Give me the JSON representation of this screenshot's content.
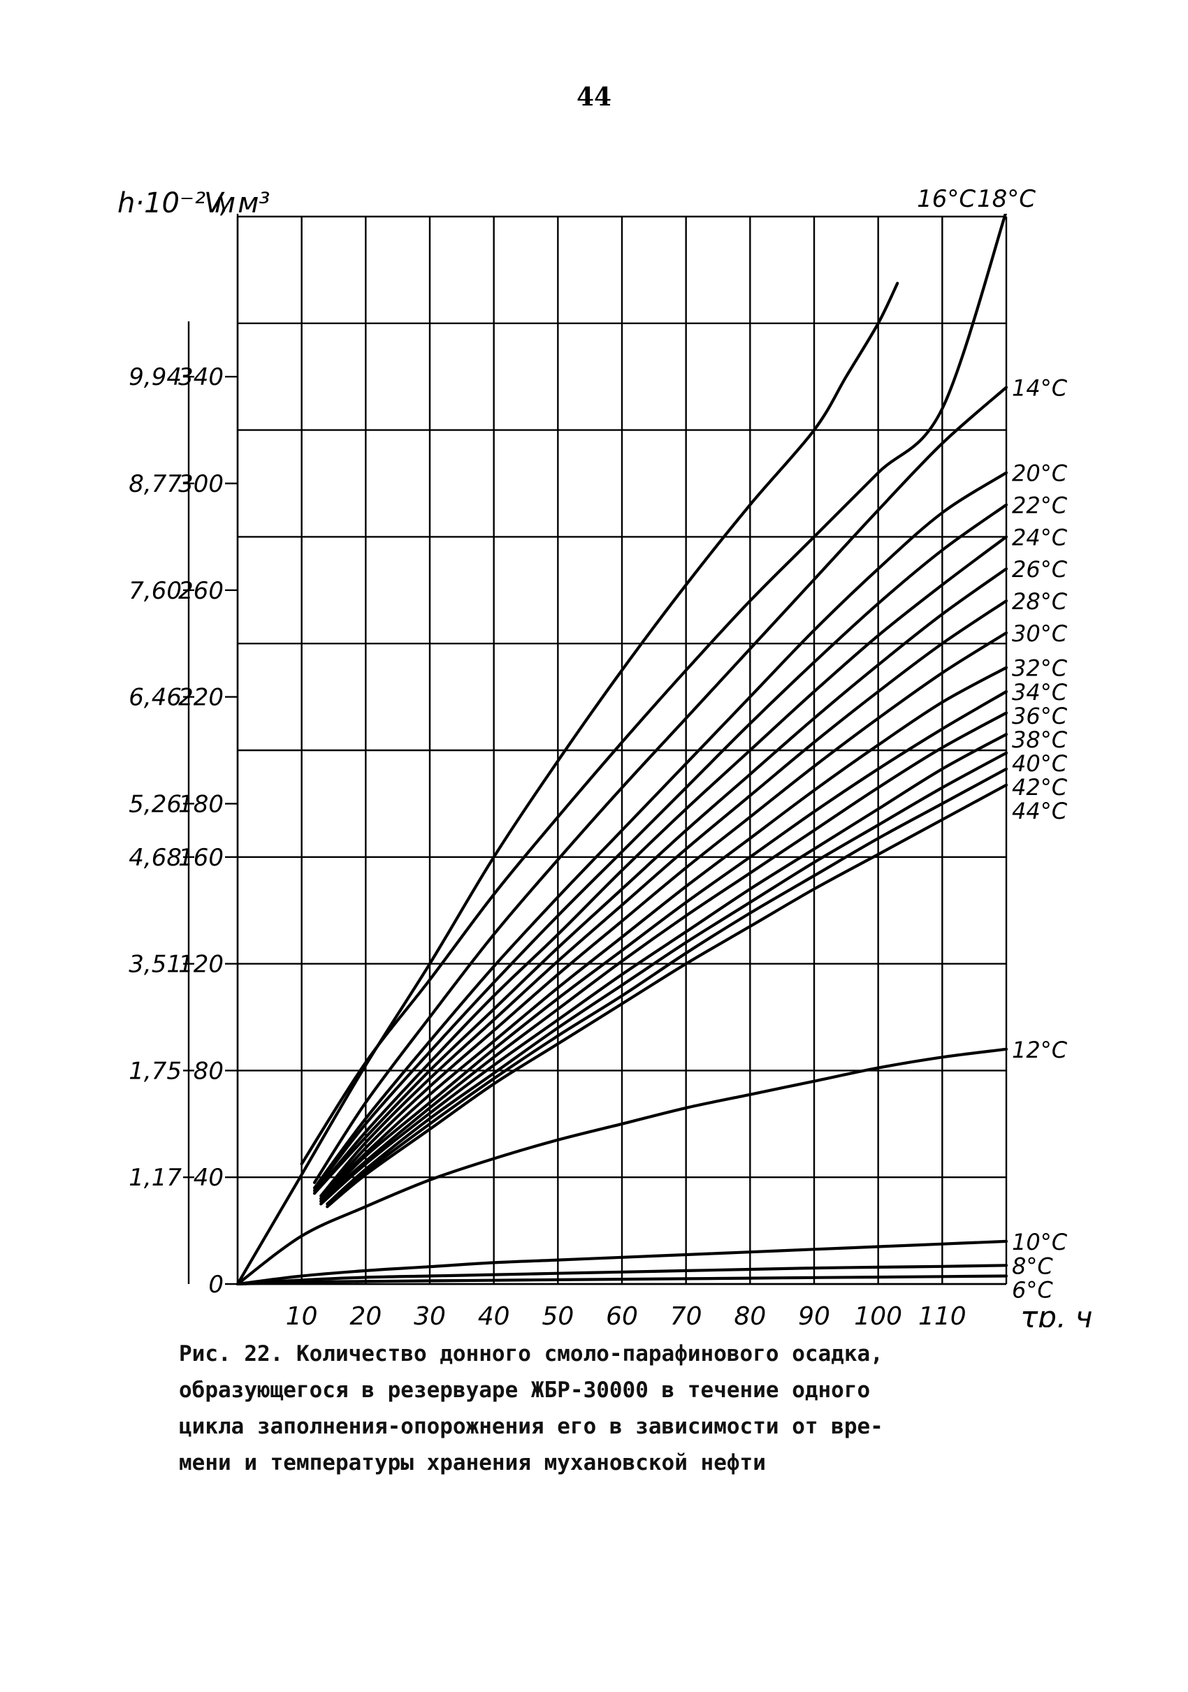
{
  "page_number": "44",
  "caption": {
    "lines": [
      "Рис. 22. Количество донного смоло-парафинового осадка,",
      "образующегося в резервуаре ЖБР-30000 в течение одного",
      "цикла заполнения-опорожнения его в зависимости от вре-",
      "мени и температуры хранения мухановской нефти"
    ]
  },
  "chart_data": {
    "type": "line",
    "xlabel": "τр, ч",
    "ylabel": "V, м³",
    "y2label": "h·10⁻² м",
    "xlim": [
      0,
      120
    ],
    "ylim": [
      0,
      400
    ],
    "x_ticks": [
      10,
      20,
      30,
      40,
      50,
      60,
      70,
      80,
      90,
      100,
      110
    ],
    "y_ticks": [
      0,
      40,
      80,
      120,
      160,
      180,
      220,
      260,
      300,
      340
    ],
    "y_tick_labels": [
      "0",
      "40",
      "80",
      "120",
      "160",
      "180",
      "220",
      "260",
      "300",
      "340"
    ],
    "h_ticks": [
      "1,17",
      "1,75",
      "3,51",
      "4,68",
      "5,26",
      "6,46",
      "7,60",
      "8,77",
      "9,94"
    ],
    "grid": true,
    "series": [
      {
        "name": "16°C",
        "label_pos": "top",
        "points": [
          [
            0,
            0
          ],
          [
            10,
            41
          ],
          [
            20,
            82
          ],
          [
            30,
            120
          ],
          [
            40,
            160
          ],
          [
            50,
            196
          ],
          [
            60,
            230
          ],
          [
            70,
            262
          ],
          [
            80,
            292
          ],
          [
            90,
            320
          ],
          [
            95,
            340
          ],
          [
            100,
            360
          ],
          [
            103,
            375
          ]
        ]
      },
      {
        "name": "18°C",
        "label_pos": "top",
        "points": [
          [
            10,
            45
          ],
          [
            20,
            83
          ],
          [
            30,
            114
          ],
          [
            40,
            146
          ],
          [
            50,
            175
          ],
          [
            60,
            203
          ],
          [
            70,
            230
          ],
          [
            80,
            256
          ],
          [
            90,
            280
          ],
          [
            100,
            304
          ],
          [
            110,
            328
          ],
          [
            120,
            402
          ]
        ]
      },
      {
        "name": "14°C",
        "label_pos": "right",
        "points": [
          [
            12,
            38
          ],
          [
            20,
            68
          ],
          [
            30,
            100
          ],
          [
            40,
            131
          ],
          [
            50,
            159
          ],
          [
            60,
            186
          ],
          [
            70,
            212
          ],
          [
            80,
            238
          ],
          [
            90,
            264
          ],
          [
            100,
            290
          ],
          [
            110,
            315
          ],
          [
            120,
            336
          ]
        ]
      },
      {
        "name": "20°C",
        "label_pos": "right",
        "points": [
          [
            12,
            36
          ],
          [
            20,
            62
          ],
          [
            30,
            91
          ],
          [
            40,
            119
          ],
          [
            50,
            145
          ],
          [
            60,
            170
          ],
          [
            70,
            195
          ],
          [
            80,
            220
          ],
          [
            90,
            245
          ],
          [
            100,
            268
          ],
          [
            110,
            289
          ],
          [
            120,
            304
          ]
        ]
      },
      {
        "name": "22°C",
        "label_pos": "right",
        "points": [
          [
            12,
            35
          ],
          [
            20,
            60
          ],
          [
            30,
            87
          ],
          [
            40,
            113
          ],
          [
            50,
            138
          ],
          [
            60,
            162
          ],
          [
            70,
            186
          ],
          [
            80,
            210
          ],
          [
            90,
            233
          ],
          [
            100,
            255
          ],
          [
            110,
            275
          ],
          [
            120,
            292
          ]
        ]
      },
      {
        "name": "24°C",
        "label_pos": "right",
        "points": [
          [
            12,
            34
          ],
          [
            20,
            57
          ],
          [
            30,
            83
          ],
          [
            40,
            108
          ],
          [
            50,
            131
          ],
          [
            60,
            155
          ],
          [
            70,
            178
          ],
          [
            80,
            200
          ],
          [
            90,
            222
          ],
          [
            100,
            243
          ],
          [
            110,
            262
          ],
          [
            120,
            280
          ]
        ]
      },
      {
        "name": "26°C",
        "label_pos": "right",
        "points": [
          [
            12,
            34
          ],
          [
            20,
            55
          ],
          [
            30,
            80
          ],
          [
            40,
            103
          ],
          [
            50,
            126
          ],
          [
            60,
            148
          ],
          [
            70,
            170
          ],
          [
            80,
            191
          ],
          [
            90,
            212
          ],
          [
            100,
            232
          ],
          [
            110,
            251
          ],
          [
            120,
            268
          ]
        ]
      },
      {
        "name": "28°C",
        "label_pos": "right",
        "points": [
          [
            13,
            33
          ],
          [
            20,
            53
          ],
          [
            30,
            77
          ],
          [
            40,
            99
          ],
          [
            50,
            121
          ],
          [
            60,
            142
          ],
          [
            70,
            163
          ],
          [
            80,
            183
          ],
          [
            90,
            203
          ],
          [
            100,
            222
          ],
          [
            110,
            240
          ],
          [
            120,
            256
          ]
        ]
      },
      {
        "name": "30°C",
        "label_pos": "right",
        "points": [
          [
            13,
            32
          ],
          [
            20,
            51
          ],
          [
            30,
            74
          ],
          [
            40,
            95
          ],
          [
            50,
            116
          ],
          [
            60,
            136
          ],
          [
            70,
            156
          ],
          [
            80,
            175
          ],
          [
            90,
            194
          ],
          [
            100,
            212
          ],
          [
            110,
            229
          ],
          [
            120,
            244
          ]
        ]
      },
      {
        "name": "32°C",
        "label_pos": "right",
        "points": [
          [
            13,
            32
          ],
          [
            20,
            49
          ],
          [
            30,
            71
          ],
          [
            40,
            91
          ],
          [
            50,
            111
          ],
          [
            60,
            130
          ],
          [
            70,
            149
          ],
          [
            80,
            167
          ],
          [
            90,
            185
          ],
          [
            100,
            202
          ],
          [
            110,
            218
          ],
          [
            120,
            231
          ]
        ]
      },
      {
        "name": "34°C",
        "label_pos": "right",
        "points": [
          [
            13,
            31
          ],
          [
            20,
            48
          ],
          [
            30,
            68
          ],
          [
            40,
            88
          ],
          [
            50,
            107
          ],
          [
            60,
            125
          ],
          [
            70,
            143
          ],
          [
            80,
            160
          ],
          [
            90,
            177
          ],
          [
            100,
            193
          ],
          [
            110,
            208
          ],
          [
            120,
            222
          ]
        ]
      },
      {
        "name": "36°C",
        "label_pos": "right",
        "points": [
          [
            13,
            31
          ],
          [
            20,
            46
          ],
          [
            30,
            66
          ],
          [
            40,
            85
          ],
          [
            50,
            103
          ],
          [
            60,
            121
          ],
          [
            70,
            138
          ],
          [
            80,
            154
          ],
          [
            90,
            170
          ],
          [
            100,
            186
          ],
          [
            110,
            201
          ],
          [
            120,
            214
          ]
        ]
      },
      {
        "name": "38°C",
        "label_pos": "right",
        "points": [
          [
            13,
            30
          ],
          [
            20,
            45
          ],
          [
            30,
            64
          ],
          [
            40,
            82
          ],
          [
            50,
            99
          ],
          [
            60,
            116
          ],
          [
            70,
            132
          ],
          [
            80,
            148
          ],
          [
            90,
            163
          ],
          [
            100,
            178
          ],
          [
            110,
            193
          ],
          [
            120,
            206
          ]
        ]
      },
      {
        "name": "40°C",
        "label_pos": "right",
        "points": [
          [
            14,
            30
          ],
          [
            20,
            43
          ],
          [
            30,
            62
          ],
          [
            40,
            79
          ],
          [
            50,
            96
          ],
          [
            60,
            112
          ],
          [
            70,
            128
          ],
          [
            80,
            143
          ],
          [
            90,
            158
          ],
          [
            100,
            172
          ],
          [
            110,
            186
          ],
          [
            120,
            199
          ]
        ]
      },
      {
        "name": "42°C",
        "label_pos": "right",
        "points": [
          [
            14,
            29
          ],
          [
            20,
            42
          ],
          [
            30,
            60
          ],
          [
            40,
            77
          ],
          [
            50,
            93
          ],
          [
            60,
            108
          ],
          [
            70,
            124
          ],
          [
            80,
            139
          ],
          [
            90,
            153
          ],
          [
            100,
            167
          ],
          [
            110,
            180
          ],
          [
            120,
            193
          ]
        ]
      },
      {
        "name": "44°C",
        "label_pos": "right",
        "points": [
          [
            14,
            29
          ],
          [
            20,
            41
          ],
          [
            30,
            58
          ],
          [
            40,
            75
          ],
          [
            50,
            90
          ],
          [
            60,
            105
          ],
          [
            70,
            120
          ],
          [
            80,
            134
          ],
          [
            90,
            148
          ],
          [
            100,
            161
          ],
          [
            110,
            174
          ],
          [
            120,
            187
          ]
        ]
      },
      {
        "name": "12°C",
        "label_pos": "right",
        "points": [
          [
            0,
            0
          ],
          [
            10,
            18
          ],
          [
            20,
            29
          ],
          [
            30,
            39
          ],
          [
            40,
            47
          ],
          [
            50,
            54
          ],
          [
            60,
            60
          ],
          [
            70,
            66
          ],
          [
            80,
            71
          ],
          [
            90,
            76
          ],
          [
            100,
            81
          ],
          [
            110,
            85
          ],
          [
            120,
            88
          ]
        ]
      },
      {
        "name": "10°C",
        "label_pos": "right",
        "points": [
          [
            0,
            0
          ],
          [
            10,
            3
          ],
          [
            20,
            5
          ],
          [
            30,
            6.5
          ],
          [
            40,
            8
          ],
          [
            50,
            9
          ],
          [
            60,
            10
          ],
          [
            70,
            11
          ],
          [
            80,
            12
          ],
          [
            90,
            13
          ],
          [
            100,
            14
          ],
          [
            110,
            15
          ],
          [
            120,
            16
          ]
        ]
      },
      {
        "name": "8°C",
        "label_pos": "right",
        "points": [
          [
            0,
            0
          ],
          [
            10,
            1.5
          ],
          [
            20,
            2.5
          ],
          [
            30,
            3
          ],
          [
            40,
            3.5
          ],
          [
            50,
            4
          ],
          [
            60,
            4.5
          ],
          [
            70,
            5
          ],
          [
            80,
            5.5
          ],
          [
            90,
            6
          ],
          [
            100,
            6.3
          ],
          [
            110,
            6.6
          ],
          [
            120,
            7
          ]
        ]
      },
      {
        "name": "6°C",
        "label_pos": "right",
        "points": [
          [
            0,
            0
          ],
          [
            10,
            0.7
          ],
          [
            20,
            1
          ],
          [
            30,
            1.2
          ],
          [
            40,
            1.4
          ],
          [
            50,
            1.6
          ],
          [
            60,
            1.8
          ],
          [
            70,
            2
          ],
          [
            80,
            2.2
          ],
          [
            90,
            2.4
          ],
          [
            100,
            2.6
          ],
          [
            110,
            2.8
          ],
          [
            120,
            3
          ]
        ]
      }
    ]
  }
}
